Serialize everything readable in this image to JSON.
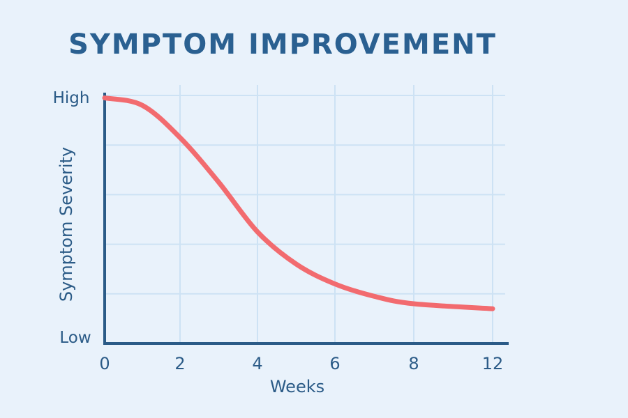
{
  "chart_data": {
    "type": "line",
    "title": "SYMPTOM IMPROVEMENT",
    "xlabel": "Weeks",
    "ylabel": "Symptom Severity",
    "x_ticks": [
      0,
      2,
      4,
      6,
      8,
      12
    ],
    "y_tick_labels": {
      "high": "High",
      "low": "Low"
    },
    "ylim": [
      0,
      10
    ],
    "grid": true,
    "series": [
      {
        "name": "Symptom Severity",
        "color": "#f26b6f",
        "x": [
          0,
          1,
          2,
          3,
          4,
          5,
          6,
          7,
          8,
          12
        ],
        "y": [
          9.9,
          9.6,
          8.3,
          6.5,
          4.5,
          3.2,
          2.4,
          1.9,
          1.6,
          1.4
        ]
      }
    ],
    "colors": {
      "axis": "#2b5b87",
      "title": "#2a6091",
      "grid": "#cde2f4",
      "background": "#e9f2fb"
    }
  }
}
